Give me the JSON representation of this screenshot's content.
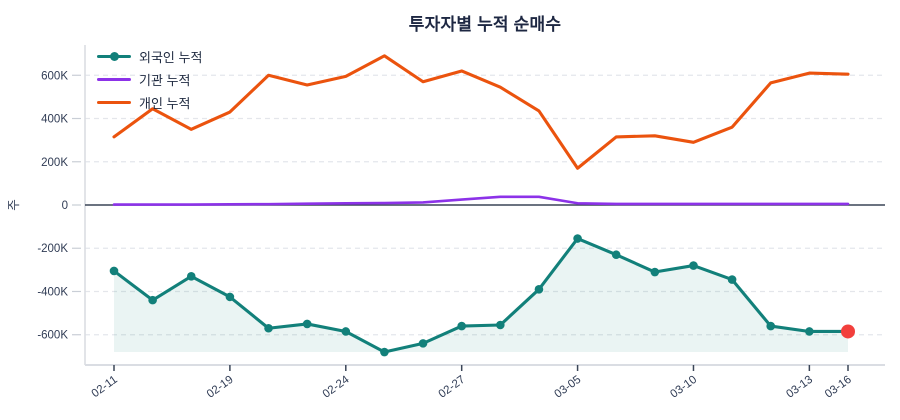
{
  "chart": {
    "title": "투자자별 누적 순매수",
    "y_axis_label": "주"
  },
  "chart_data": {
    "type": "line",
    "title": "투자자별 누적 순매수",
    "xlabel": "",
    "ylabel": "주",
    "unit": "shares (K = thousands)",
    "grid": "horizontal-dashed",
    "legend_position": "top-left-inside",
    "num_points": 20,
    "x_tick_labels": [
      "02-11",
      "02-19",
      "02-24",
      "02-27",
      "03-05",
      "03-10",
      "03-13",
      "03-16"
    ],
    "x_tick_point_indices": [
      0,
      3,
      6,
      9,
      12,
      15,
      18,
      19
    ],
    "ytick_labels": [
      "600K",
      "400K",
      "200K",
      "0",
      "-200K",
      "-400K",
      "-600K"
    ],
    "yticks_k": [
      600,
      400,
      200,
      0,
      -200,
      -400,
      -600
    ],
    "ylim_k": [
      -740,
      740
    ],
    "area_baseline_k": -680,
    "series": [
      {
        "name": "외국인 누적",
        "key": "foreign",
        "color": "#12807A",
        "marker": "circle",
        "area_fill": true,
        "last_point_highlight_color": "#F23F3C",
        "values_k": [
          -305,
          -440,
          -330,
          -425,
          -570,
          -550,
          -585,
          -680,
          -640,
          -560,
          -555,
          -390,
          -155,
          -230,
          -310,
          -280,
          -345,
          -560,
          -585,
          -585
        ]
      },
      {
        "name": "기관 누적",
        "key": "institution",
        "color": "#8C32E8",
        "marker": "none",
        "area_fill": false,
        "values_k": [
          2,
          2,
          2,
          3,
          4,
          6,
          8,
          9,
          12,
          25,
          38,
          38,
          8,
          5,
          5,
          5,
          5,
          5,
          5,
          5
        ]
      },
      {
        "name": "개인 누적",
        "key": "individual",
        "color": "#EB530E",
        "marker": "none",
        "area_fill": false,
        "values_k": [
          315,
          445,
          350,
          430,
          600,
          555,
          595,
          690,
          570,
          620,
          545,
          435,
          170,
          315,
          320,
          290,
          360,
          565,
          610,
          605
        ]
      }
    ]
  },
  "colors": {
    "background": "#ffffff",
    "title_text": "#1d2742",
    "tick_text": "#303C55",
    "grid_line": "#E4E6EB",
    "zero_line": "#3A4557",
    "axis_line": "#DADDE3",
    "y_tick_mark": "#C9CED6",
    "x_tick_mark": "#3A4557",
    "area_fill": "rgba(18,128,122,0.09)",
    "highlight_dot": "#F23F3C"
  }
}
